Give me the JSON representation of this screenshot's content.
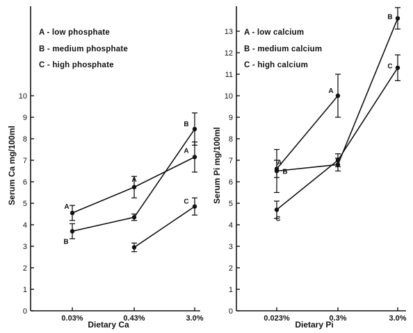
{
  "chart_data": [
    {
      "type": "line",
      "title": "",
      "xlabel": "Dietary Ca",
      "ylabel": "Serum Ca mg/100ml",
      "categories": [
        "0.03%",
        "0.43%",
        "3.0%"
      ],
      "ylim": [
        0,
        10
      ],
      "yticks": [
        0,
        1,
        2,
        3,
        4,
        5,
        6,
        7,
        8,
        9,
        10
      ],
      "grid": false,
      "legend_position": "top-left",
      "legend": [
        "A - low phosphate",
        "B - medium phosphate",
        "C - high phosphate"
      ],
      "series": [
        {
          "name": "A",
          "values": [
            4.55,
            5.75,
            7.15
          ],
          "errors": [
            0.35,
            0.5,
            0.7
          ]
        },
        {
          "name": "B",
          "values": [
            3.7,
            4.35,
            8.45
          ],
          "errors": [
            0.35,
            0.15,
            0.75
          ]
        },
        {
          "name": "C",
          "values": [
            null,
            2.95,
            4.85
          ],
          "errors": [
            null,
            0.2,
            0.4
          ]
        }
      ]
    },
    {
      "type": "line",
      "title": "",
      "xlabel": "Dietary Pi",
      "ylabel": "Serum Pi mg/100ml",
      "categories": [
        "0.023%",
        "0.3%",
        "3.0%"
      ],
      "ylim": [
        0,
        13
      ],
      "yticks": [
        0,
        1,
        2,
        3,
        4,
        5,
        6,
        7,
        8,
        9,
        10,
        11,
        12,
        13
      ],
      "grid": false,
      "legend_position": "top-left",
      "legend": [
        "A - low calcium",
        "B - medium calcium",
        "C - high calcium"
      ],
      "series": [
        {
          "name": "A",
          "values": [
            6.6,
            10.0,
            null
          ],
          "errors": [
            0.4,
            1.0,
            null
          ]
        },
        {
          "name": "B",
          "values": [
            6.5,
            6.8,
            13.6
          ],
          "errors": [
            1.0,
            0.3,
            0.5
          ]
        },
        {
          "name": "C",
          "values": [
            4.7,
            7.0,
            11.3
          ],
          "errors": [
            0.4,
            0.3,
            0.6
          ]
        }
      ]
    }
  ]
}
